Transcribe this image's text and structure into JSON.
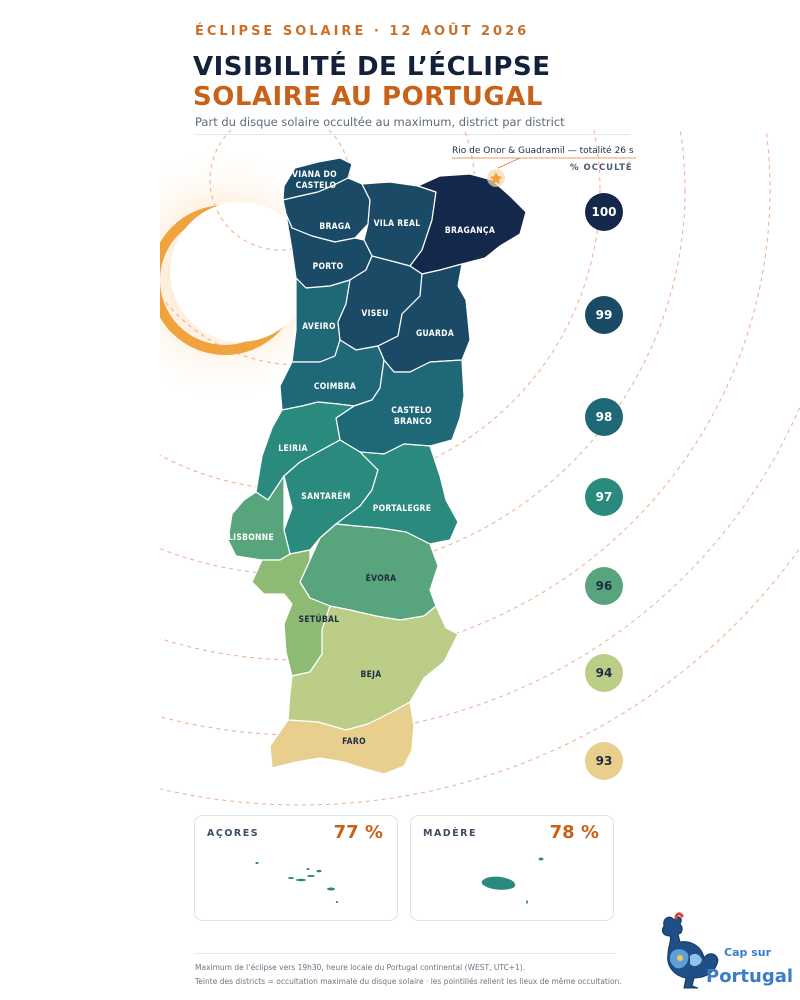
{
  "header": {
    "kicker": "ÉCLIPSE SOLAIRE · 12 AOÛT 2026",
    "title_line1": "VISIBILITÉ DE L’ÉCLIPSE",
    "title_line2": "SOLAIRE AU PORTUGAL",
    "subtitle": "Part du disque solaire occultée au maximum, district par district"
  },
  "callout": "Rio de Onor & Guadramil — totalité 26 s",
  "legend": {
    "title": "% OCCULTÉ",
    "levels": [
      {
        "value": "100",
        "color": "#13284a",
        "text_color": "#ffffff"
      },
      {
        "value": "99",
        "color": "#1a4a66",
        "text_color": "#ffffff"
      },
      {
        "value": "98",
        "color": "#1f6878",
        "text_color": "#ffffff"
      },
      {
        "value": "97",
        "color": "#2a8a7d",
        "text_color": "#ffffff"
      },
      {
        "value": "96",
        "color": "#58a47c",
        "text_color": "#1d2d44"
      },
      {
        "value": "94",
        "color": "#bccd88",
        "text_color": "#1d2d44"
      },
      {
        "value": "93",
        "color": "#e8cf8e",
        "text_color": "#1d2d44"
      }
    ]
  },
  "districts": [
    {
      "name": "VIANA DO",
      "name2": "CASTELO",
      "occultation": 99
    },
    {
      "name": "BRAGA",
      "occultation": 99
    },
    {
      "name": "VILA REAL",
      "occultation": 99
    },
    {
      "name": "BRAGANÇA",
      "occultation": 100
    },
    {
      "name": "PORTO",
      "occultation": 99
    },
    {
      "name": "AVEIRO",
      "occultation": 98
    },
    {
      "name": "VISEU",
      "occultation": 99
    },
    {
      "name": "GUARDA",
      "occultation": 99
    },
    {
      "name": "COIMBRA",
      "occultation": 98
    },
    {
      "name": "CASTELO",
      "name2": "BRANCO",
      "occultation": 98
    },
    {
      "name": "LEIRIA",
      "occultation": 98
    },
    {
      "name": "SANTARÉM",
      "occultation": 97
    },
    {
      "name": "PORTALEGRE",
      "occultation": 97
    },
    {
      "name": "LISBONNE",
      "occultation": 96
    },
    {
      "name": "ÉVORA",
      "occultation": 96
    },
    {
      "name": "SETÚBAL",
      "occultation": 94
    },
    {
      "name": "BEJA",
      "occultation": 94
    },
    {
      "name": "FARO",
      "occultation": 93
    }
  ],
  "islands": [
    {
      "name": "AÇORES",
      "value": "77 %",
      "color": "#2a8a7d"
    },
    {
      "name": "MADÈRE",
      "value": "78 %",
      "color": "#2a8a7d"
    }
  ],
  "footer": {
    "line1": "Maximum de l’éclipse vers 19h30, heure locale du Portugal continental (WEST, UTC+1).",
    "line2": "Teinte des districts = occultation maximale du disque solaire · les pointillés relient les lieux de même occultation."
  },
  "logo": {
    "text1": "Cap sur",
    "text2": "Portugal",
    "icon": "rooster-icon"
  },
  "colors": {
    "accent": "#c8621a",
    "sun": "#f0a23c",
    "ink": "#13213a"
  }
}
